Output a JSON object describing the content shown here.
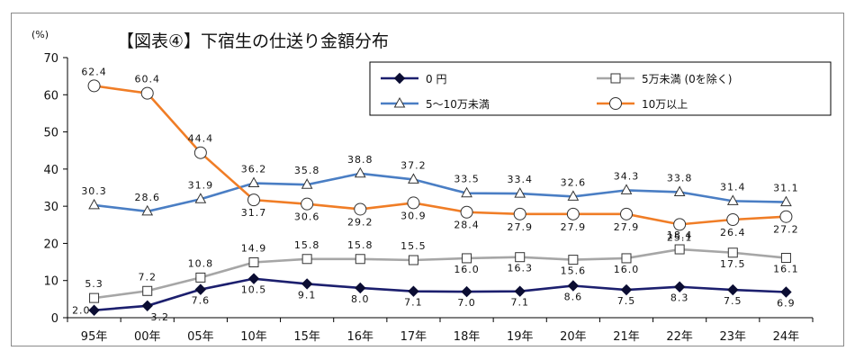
{
  "chart_data": {
    "type": "line",
    "title": "【図表④】下宿生の仕送り金額分布",
    "unit": "(%)",
    "categories": [
      "95年",
      "00年",
      "05年",
      "10年",
      "15年",
      "16年",
      "17年",
      "18年",
      "19年",
      "20年",
      "21年",
      "22年",
      "23年",
      "24年"
    ],
    "ylim": [
      0,
      70
    ],
    "yticks": [
      0,
      10,
      20,
      30,
      40,
      50,
      60,
      70
    ],
    "grid": false,
    "legend_position": "top-right",
    "series": [
      {
        "name": "0 円",
        "color": "#1c1f6e",
        "marker": "diamond",
        "values": [
          2.0,
          3.2,
          7.6,
          10.5,
          9.1,
          8.0,
          7.1,
          7.0,
          7.1,
          8.6,
          7.5,
          8.3,
          7.5,
          6.9
        ]
      },
      {
        "name": "5万未満 (0を除く)",
        "color": "#a6a6a6",
        "marker": "square",
        "values": [
          5.3,
          7.2,
          10.8,
          14.9,
          15.8,
          15.8,
          15.5,
          16.0,
          16.3,
          15.6,
          16.0,
          18.4,
          17.5,
          16.1
        ]
      },
      {
        "name": "5～10万未満",
        "color": "#4a7ec4",
        "marker": "triangle",
        "values": [
          30.3,
          28.6,
          31.9,
          36.2,
          35.8,
          38.8,
          37.2,
          33.5,
          33.4,
          32.6,
          34.3,
          33.8,
          31.4,
          31.1
        ]
      },
      {
        "name": "10万以上",
        "color": "#f07d26",
        "marker": "circle",
        "values": [
          62.4,
          60.4,
          44.4,
          31.7,
          30.6,
          29.2,
          30.9,
          28.4,
          27.9,
          27.9,
          27.9,
          25.1,
          26.4,
          27.2
        ]
      }
    ]
  }
}
